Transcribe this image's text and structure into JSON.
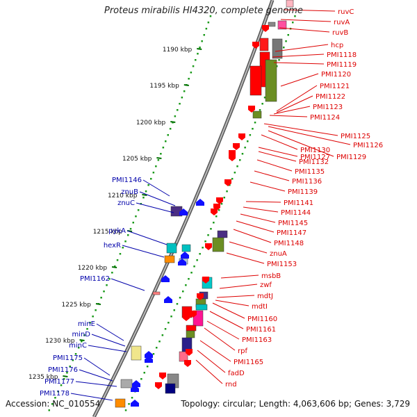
{
  "title": "Proteus mirabilis HI4320, complete genome",
  "accession": "Accession: NC_010554",
  "topology": "Topology: circular; Length: 4,063,606 bp; Genes: 3,729",
  "colors": {
    "forward_label": "#0000aa",
    "reverse_label": "#dd0000",
    "forward_arrow": "#1010ff",
    "reverse_arrow": "#ff0000",
    "tick": "#007000",
    "dots": "#1a9a1a",
    "backbone": "#8a8a8a"
  },
  "scale_ticks": [
    "1190 kbp",
    "1195 kbp",
    "1200 kbp",
    "1205 kbp",
    "1210 kbp",
    "1215 kbp",
    "1220 kbp",
    "1225 kbp",
    "1230 kbp",
    "1235 kbp"
  ],
  "reverse_genes": [
    "ruvC",
    "ruvA",
    "ruvB",
    "hcp",
    "PMI1118",
    "PMI1119",
    "PMI1120",
    "PMI1121",
    "PMI1122",
    "PMI1123",
    "PMI1124",
    "PMI1125",
    "PMI1126",
    "PMI1127",
    "PMI1129",
    "PMI1130",
    "PMI1132",
    "PMI1135",
    "PMI1136",
    "PMI1139",
    "PMI1141",
    "PMI1144",
    "PMI1145",
    "PMI1147",
    "PMI1148",
    "znuA",
    "PMI1153",
    "msbB",
    "zwf",
    "mdtJ",
    "mdtI",
    "PMI1160",
    "PMI1161",
    "PMI1163",
    "rpf",
    "PMI1165",
    "fadD",
    "rnd"
  ],
  "forward_genes": [
    "PMI1146",
    "znuB",
    "znuC",
    "pykA",
    "hexR",
    "PMI1162",
    "minE",
    "minD",
    "minC",
    "PMI1175",
    "PMI1176",
    "PMI1177",
    "PMI1178"
  ]
}
